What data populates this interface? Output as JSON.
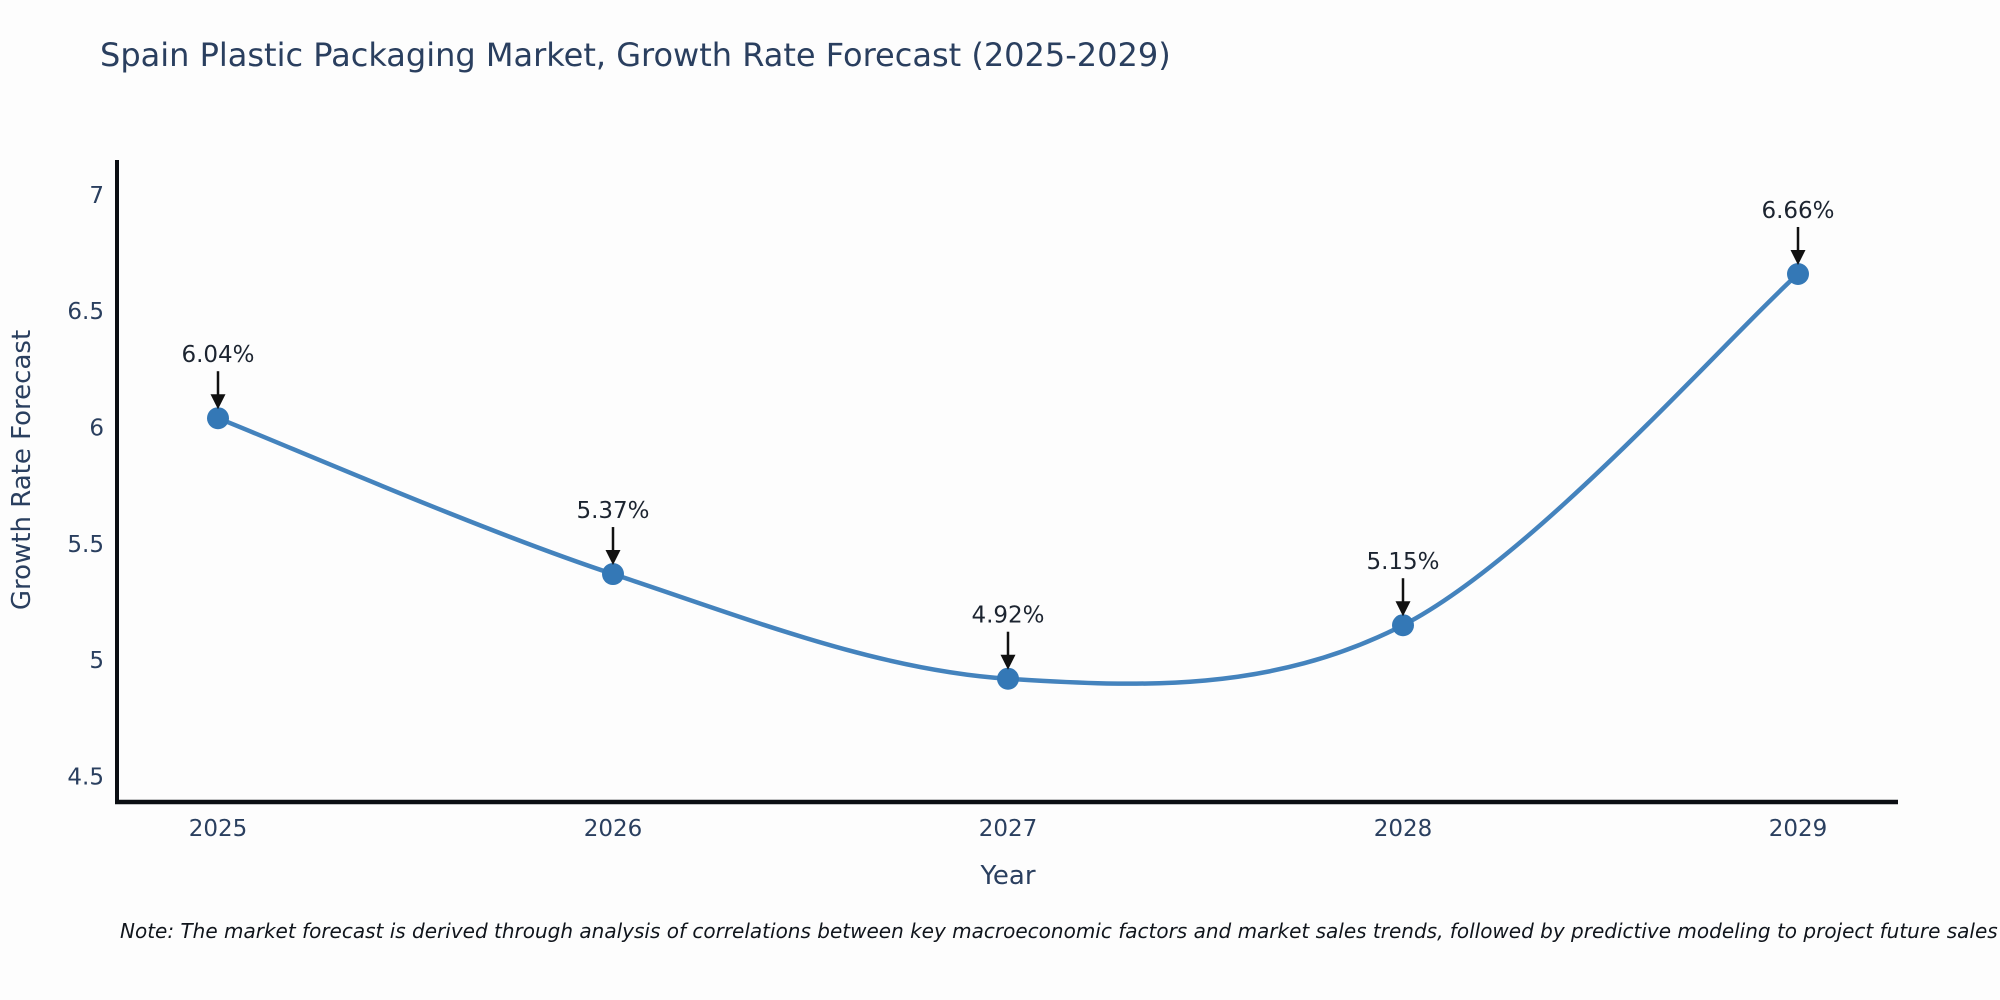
{
  "title": "Spain Plastic Packaging Market, Growth Rate Forecast (2025-2029)",
  "note": "Note: The market forecast is derived through analysis of correlations between key macroeconomic factors and market sales trends, followed by predictive modeling to project future sales",
  "chart_data": {
    "type": "line",
    "title": "Spain Plastic Packaging Market, Growth Rate Forecast (2025-2029)",
    "categories": [
      "2025",
      "2026",
      "2027",
      "2028",
      "2029"
    ],
    "series": [
      {
        "name": "Growth Rate Forecast",
        "values": [
          6.04,
          5.37,
          4.92,
          5.15,
          6.66
        ],
        "point_labels": [
          "6.04%",
          "5.37%",
          "4.92%",
          "5.15%",
          "6.66%"
        ]
      }
    ],
    "xlabel": "Year",
    "ylabel": "Growth Rate Forecast",
    "yticks": [
      4.5,
      5,
      5.5,
      6,
      6.5,
      7
    ],
    "ytick_labels": [
      "4.5",
      "5",
      "5.5",
      "6",
      "6.5",
      "7"
    ],
    "ylim": [
      4.39,
      7.15
    ],
    "grid": false,
    "legend": false,
    "line_shape": "spline",
    "annotation_style": "value label with downward arrow to marker",
    "colors": {
      "line": "#4483bd",
      "marker": "#3478b6",
      "arrow": "#111111",
      "axis": "#0b0e13",
      "text": "#2a3f5f",
      "annotation_text": "#1c2430",
      "background": "#fdfdfd"
    }
  }
}
